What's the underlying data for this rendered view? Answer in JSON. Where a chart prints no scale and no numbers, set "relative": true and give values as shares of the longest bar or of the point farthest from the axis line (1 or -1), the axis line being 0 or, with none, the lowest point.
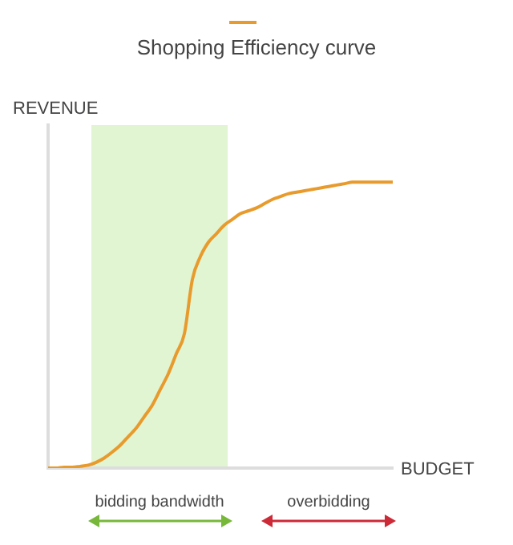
{
  "chart_data": {
    "type": "line",
    "title": "Shopping Efficiency curve",
    "xlabel": "BUDGET",
    "ylabel": "REVENUE",
    "relative": true,
    "categories": [
      null,
      null,
      null,
      null,
      null,
      null,
      null,
      null,
      null,
      null,
      null,
      null,
      null,
      null,
      null,
      null,
      null,
      null,
      null,
      null,
      null,
      null,
      null,
      null,
      null,
      null,
      null,
      null,
      null,
      null,
      null,
      null,
      null,
      null,
      null,
      null,
      null,
      null,
      null,
      null,
      null,
      null,
      null,
      null
    ],
    "series": [
      {
        "color": "#e89b2c",
        "values": [
          0,
          0,
          0.003,
          0.003,
          0.006,
          0.01,
          0.02,
          0.035,
          0.056,
          0.08,
          0.11,
          0.14,
          0.18,
          0.22,
          0.275,
          0.33,
          0.4,
          0.47,
          0.66,
          0.74,
          0.79,
          0.82,
          0.85,
          0.87,
          0.89,
          0.9,
          0.91,
          0.925,
          0.94,
          0.95,
          0.96,
          0.965,
          0.97,
          0.975,
          0.98,
          0.985,
          0.99,
          0.995,
          1,
          1,
          1,
          1,
          1,
          1
        ]
      }
    ],
    "annotations": [
      "bidding bandwidth",
      "overbidding"
    ],
    "marker": "none",
    "line_style": "solid",
    "grid": false,
    "legend": false
  }
}
